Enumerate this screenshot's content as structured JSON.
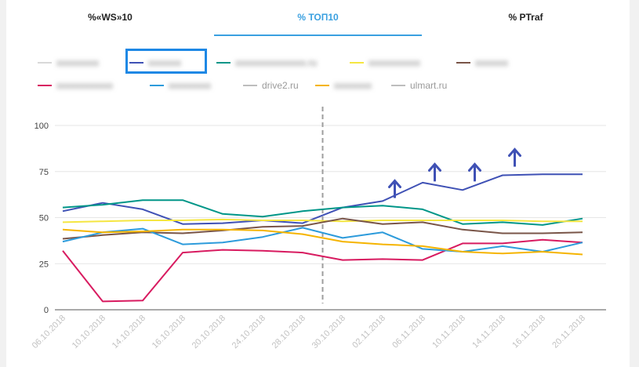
{
  "tabs": [
    {
      "label": "%«WS»10",
      "active": false
    },
    {
      "label": "% ТОП10",
      "active": true
    },
    {
      "label": "% PTraf",
      "active": false
    }
  ],
  "legend": [
    {
      "label": "xxxxxxxxx",
      "color": "#d9d9d9",
      "blurred": true
    },
    {
      "label": "xxxxxxx",
      "color": "#3f51b5",
      "blurred": true
    },
    {
      "label": "xxxxxxxxxxxxxxx.ru",
      "color": "#009688",
      "blurred": true
    },
    {
      "label": "xxxxxxxxxxx",
      "color": "#f5e642",
      "blurred": true
    },
    {
      "label": "xxxxxxx",
      "color": "#795548",
      "blurred": true
    },
    {
      "label": "xxxxxxxxxxxx",
      "color": "#d81b60",
      "blurred": true
    },
    {
      "label": "xxxxxxxxx",
      "color": "#2d9bdb",
      "blurred": true
    },
    {
      "label": "drive2.ru",
      "color": "#bdbdbd",
      "blurred": false
    },
    {
      "label": "xxxxxxxx",
      "color": "#f5b400",
      "blurred": true
    },
    {
      "label": "ulmart.ru",
      "color": "#bdbdbd",
      "blurred": false
    }
  ],
  "chart_data": {
    "type": "line",
    "x": [
      "06.10.2018",
      "10.10.2018",
      "14.10.2018",
      "16.10.2018",
      "20.10.2018",
      "24.10.2018",
      "28.10.2018",
      "30.10.2018",
      "02.11.2018",
      "06.11.2018",
      "10.11.2018",
      "14.11.2018",
      "16.11.2018",
      "20.11.2018"
    ],
    "y_ticks": [
      0,
      25,
      50,
      75,
      100
    ],
    "ylim": [
      0,
      100
    ],
    "grid": true,
    "vertical_marker_index": 6.5,
    "up_arrows_at_index": [
      8.5,
      9.5,
      10.5,
      11.5
    ],
    "series": [
      {
        "color": "#3f51b5",
        "values": [
          53.5,
          58,
          54.5,
          46.5,
          47,
          48.5,
          47,
          55.5,
          59,
          69,
          65,
          73,
          73.5,
          73.5
        ]
      },
      {
        "color": "#009688",
        "values": [
          55.5,
          57,
          59.5,
          59.5,
          52,
          50.5,
          53.5,
          55.5,
          56.5,
          54.5,
          46.5,
          47.5,
          46,
          49.5
        ]
      },
      {
        "color": "#f5e642",
        "values": [
          47.5,
          48,
          48.5,
          48.5,
          49,
          48.5,
          48.5,
          48,
          48.5,
          48.5,
          48.5,
          48.5,
          48,
          48
        ]
      },
      {
        "color": "#795548",
        "values": [
          38.5,
          40.5,
          42,
          41.5,
          43,
          45,
          45.5,
          49.5,
          46.5,
          47.5,
          43.5,
          41.5,
          41.5,
          42
        ]
      },
      {
        "color": "#d81b60",
        "values": [
          32,
          4.5,
          5,
          31,
          32.5,
          32,
          31,
          27,
          27.5,
          27,
          36,
          36,
          38,
          36.5
        ]
      },
      {
        "color": "#2d9bdb",
        "values": [
          37,
          42,
          44,
          35.5,
          36.5,
          39.5,
          44.5,
          39,
          42,
          33,
          31.5,
          34.5,
          31.5,
          36.5
        ]
      },
      {
        "color": "#f5b400",
        "values": [
          43.5,
          42,
          42.5,
          43.5,
          43.5,
          43,
          41,
          37,
          35.5,
          34.5,
          31.5,
          30.5,
          31.5,
          30
        ]
      }
    ]
  }
}
